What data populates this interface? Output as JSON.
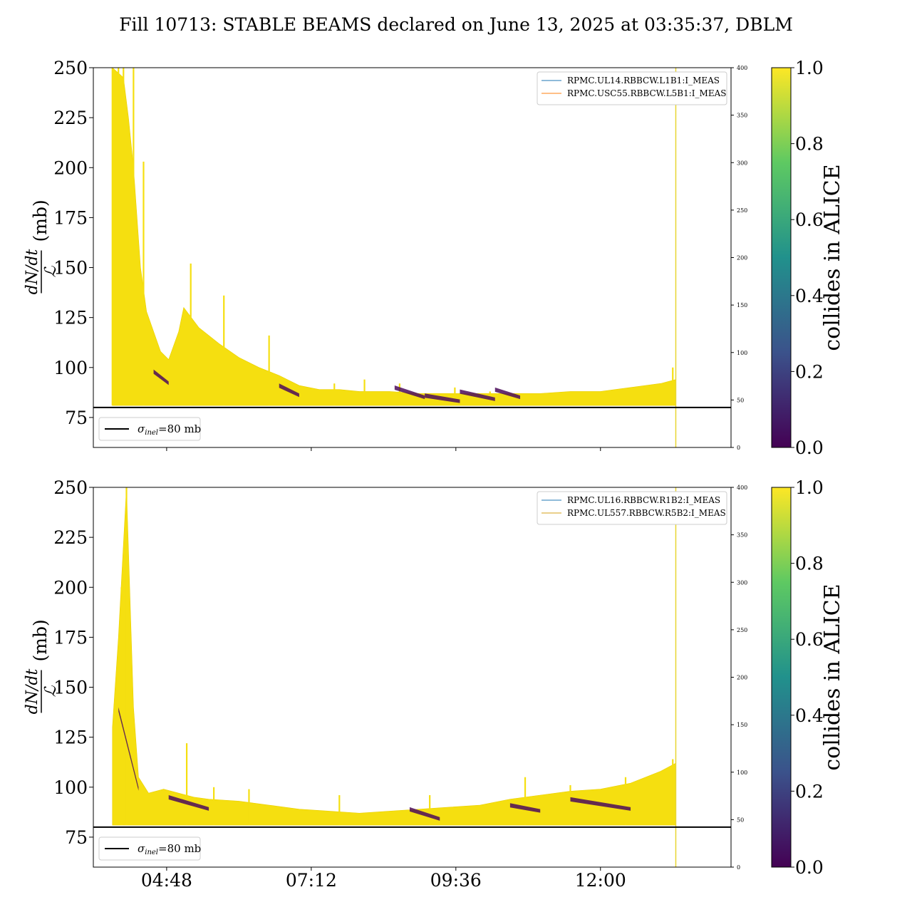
{
  "figure": {
    "title": "Fill 10713: STABLE BEAMS declared on June 13, 2025 at 03:35:37, DBLM"
  },
  "chart_data": [
    {
      "type": "line",
      "panel": "top",
      "ylabel_numerator": "dN/dt",
      "ylabel_denominator": "ℒ",
      "ylabel_unit": "(mb)",
      "ylim": [
        60,
        250
      ],
      "yticks": [
        75,
        100,
        125,
        150,
        175,
        200,
        225,
        250
      ],
      "y2lim": [
        0,
        400
      ],
      "y2ticks": [
        0,
        50,
        100,
        150,
        200,
        250,
        300,
        350,
        400
      ],
      "xlim": [
        "03:35",
        "14:10"
      ],
      "xticks": [
        "04:48",
        "07:12",
        "09:36",
        "12:00"
      ],
      "show_xticklabels": false,
      "legend_placement": "top-right",
      "series": [
        {
          "name": "RPMC.UL14.RBBCW.L1B1:I_MEAS",
          "color": "#1f77b4"
        },
        {
          "name": "RPMC.USC55.RBBCW.L5B1:I_MEAS",
          "color": "#ff7f0e"
        }
      ],
      "reference_line": {
        "y": 80,
        "label": "σ",
        "label_sub": "inel",
        "label_tail": "=80 mb",
        "legend_placement": "bottom-left"
      },
      "band_upper": [
        [
          "03:54",
          250
        ],
        [
          "04:05",
          245
        ],
        [
          "04:10",
          225
        ],
        [
          "04:15",
          200
        ],
        [
          "04:22",
          150
        ],
        [
          "04:28",
          128
        ],
        [
          "04:35",
          118
        ],
        [
          "04:42",
          108
        ],
        [
          "04:50",
          104
        ],
        [
          "05:00",
          118
        ],
        [
          "05:05",
          130
        ],
        [
          "05:20",
          120
        ],
        [
          "05:40",
          112
        ],
        [
          "06:00",
          105
        ],
        [
          "06:20",
          100
        ],
        [
          "06:40",
          96
        ],
        [
          "07:00",
          91
        ],
        [
          "07:20",
          89
        ],
        [
          "07:40",
          89
        ],
        [
          "08:00",
          88
        ],
        [
          "08:30",
          88
        ],
        [
          "09:00",
          87
        ],
        [
          "09:30",
          87
        ],
        [
          "10:00",
          87
        ],
        [
          "10:30",
          87
        ],
        [
          "11:00",
          87
        ],
        [
          "11:30",
          88
        ],
        [
          "12:00",
          88
        ],
        [
          "12:30",
          90
        ],
        [
          "13:00",
          92
        ],
        [
          "13:15",
          94
        ]
      ],
      "band_lower_value": 81,
      "band_end": "13:15",
      "spikes": [
        [
          "03:54",
          250
        ],
        [
          "04:00",
          250
        ],
        [
          "04:05",
          250
        ],
        [
          "04:15",
          250
        ],
        [
          "04:25",
          203
        ],
        [
          "05:12",
          152
        ],
        [
          "05:45",
          136
        ],
        [
          "06:30",
          116
        ],
        [
          "07:35",
          92
        ],
        [
          "08:05",
          94
        ],
        [
          "08:40",
          92
        ],
        [
          "09:35",
          90
        ],
        [
          "10:10",
          88
        ],
        [
          "13:12",
          100
        ]
      ],
      "dark_segments": [
        [
          "08:35",
          "09:05",
          91,
          86
        ],
        [
          "09:05",
          "09:40",
          87,
          84
        ],
        [
          "09:40",
          "10:15",
          89,
          85
        ],
        [
          "10:15",
          "10:40",
          90,
          86
        ],
        [
          "04:35",
          "04:50",
          99,
          93
        ],
        [
          "06:40",
          "07:00",
          92,
          87
        ]
      ],
      "vline_x": "13:15",
      "colorbar": {
        "label": "collides in ALICE",
        "range": [
          0.0,
          1.0
        ],
        "ticks": [
          "0.0",
          "0.2",
          "0.4",
          "0.6",
          "0.8",
          "1.0"
        ],
        "colormap": "viridis"
      }
    },
    {
      "type": "line",
      "panel": "bottom",
      "ylabel_numerator": "dN/dt",
      "ylabel_denominator": "ℒ",
      "ylabel_unit": "(mb)",
      "ylim": [
        60,
        250
      ],
      "yticks": [
        75,
        100,
        125,
        150,
        175,
        200,
        225,
        250
      ],
      "y2lim": [
        0,
        400
      ],
      "y2ticks": [
        0,
        50,
        100,
        150,
        200,
        250,
        300,
        350,
        400
      ],
      "xlim": [
        "03:35",
        "14:10"
      ],
      "xticks": [
        "04:48",
        "07:12",
        "09:36",
        "12:00"
      ],
      "show_xticklabels": true,
      "legend_placement": "top-right",
      "series": [
        {
          "name": "RPMC.UL16.RBBCW.R1B2:I_MEAS",
          "color": "#1f77b4"
        },
        {
          "name": "RPMC.UL557.RBBCW.R5B2:I_MEAS",
          "color": "#d4a017"
        }
      ],
      "reference_line": {
        "y": 80,
        "label": "σ",
        "label_sub": "inel",
        "label_tail": "=80 mb",
        "legend_placement": "bottom-left"
      },
      "band_upper": [
        [
          "03:54",
          130
        ],
        [
          "04:00",
          175
        ],
        [
          "04:08",
          250
        ],
        [
          "04:15",
          140
        ],
        [
          "04:20",
          105
        ],
        [
          "04:30",
          97
        ],
        [
          "04:45",
          99
        ],
        [
          "05:00",
          97
        ],
        [
          "05:15",
          95
        ],
        [
          "05:30",
          94
        ],
        [
          "06:00",
          93
        ],
        [
          "06:30",
          91
        ],
        [
          "07:00",
          89
        ],
        [
          "07:30",
          88
        ],
        [
          "08:00",
          87
        ],
        [
          "08:30",
          88
        ],
        [
          "09:00",
          89
        ],
        [
          "09:30",
          90
        ],
        [
          "10:00",
          91
        ],
        [
          "10:30",
          94
        ],
        [
          "11:00",
          96
        ],
        [
          "11:30",
          98
        ],
        [
          "12:00",
          99
        ],
        [
          "12:30",
          102
        ],
        [
          "13:00",
          108
        ],
        [
          "13:15",
          112
        ]
      ],
      "band_lower_value": 81,
      "band_end": "13:15",
      "spikes": [
        [
          "04:08",
          250
        ],
        [
          "04:03",
          200
        ],
        [
          "05:08",
          122
        ],
        [
          "05:35",
          100
        ],
        [
          "06:10",
          99
        ],
        [
          "07:40",
          96
        ],
        [
          "09:10",
          96
        ],
        [
          "10:45",
          105
        ],
        [
          "11:30",
          101
        ],
        [
          "12:25",
          105
        ],
        [
          "13:12",
          114
        ]
      ],
      "dark_segments": [
        [
          "04:00",
          "04:20",
          140,
          100
        ],
        [
          "04:50",
          "05:30",
          96,
          90
        ],
        [
          "08:50",
          "09:20",
          90,
          85
        ],
        [
          "10:30",
          "11:00",
          92,
          89
        ],
        [
          "11:30",
          "12:30",
          95,
          90
        ]
      ],
      "vline_x": "13:15",
      "colorbar": {
        "label": "collides in ALICE",
        "range": [
          0.0,
          1.0
        ],
        "ticks": [
          "0.0",
          "0.2",
          "0.4",
          "0.6",
          "0.8",
          "1.0"
        ],
        "colormap": "viridis"
      }
    }
  ],
  "colors": {
    "viridis_low": "#440154",
    "viridis_q1": "#3b528b",
    "viridis_mid": "#21918c",
    "viridis_q3": "#5ec962",
    "viridis_high": "#fde725",
    "band_fill": "#f5df10",
    "band_dark": "#4b0c5a",
    "vline": "#e8d530"
  }
}
